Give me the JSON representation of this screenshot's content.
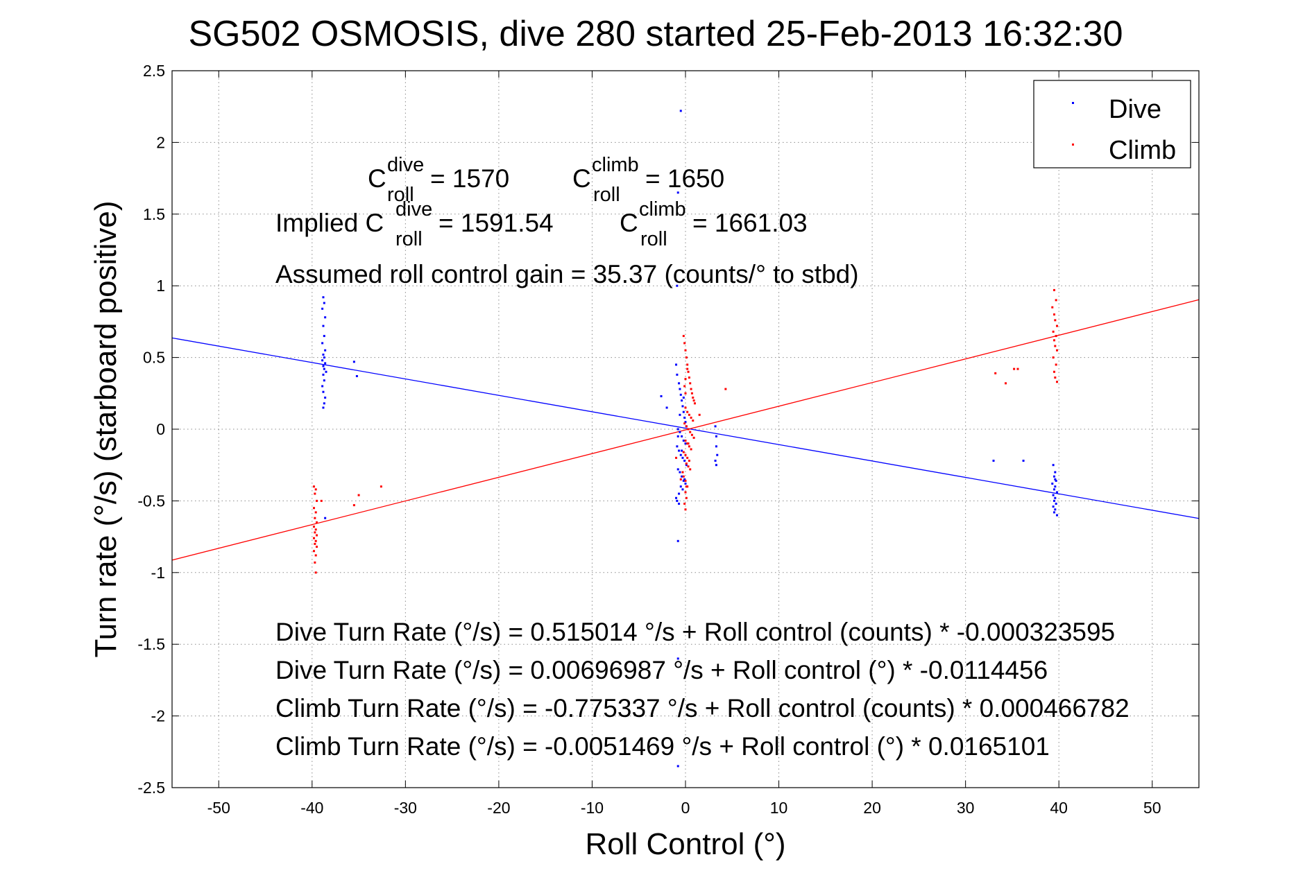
{
  "chart_data": {
    "type": "scatter",
    "title": "SG502 OSMOSIS, dive 280 started 25-Feb-2013 16:32:30",
    "xlabel": "Roll Control (°)",
    "ylabel": "Turn rate (°/s)  (starboard positive)",
    "xlim": [
      -55,
      55
    ],
    "ylim": [
      -2.5,
      2.5
    ],
    "x_ticks": [
      -50,
      -40,
      -30,
      -20,
      -10,
      0,
      10,
      20,
      30,
      40,
      50
    ],
    "x_tick_labels": [
      "-50",
      "-40",
      "-30",
      "-20",
      "-10",
      "0",
      "10",
      "20",
      "30",
      "40",
      "50"
    ],
    "y_ticks": [
      -2.5,
      -2,
      -1.5,
      -1,
      -0.5,
      0,
      0.5,
      1,
      1.5,
      2,
      2.5
    ],
    "y_tick_labels": [
      "-2.5",
      "-2",
      "-1.5",
      "-1",
      "-0.5",
      "0",
      "0.5",
      "1",
      "1.5",
      "2",
      "2.5"
    ],
    "grid": true,
    "legend_position": "top-right",
    "series": [
      {
        "name": "Dive",
        "color": "#0000ff",
        "x": [
          -38.8,
          -38.7,
          -38.9,
          -38.6,
          -38.8,
          -38.7,
          -38.9,
          -38.6,
          -38.8,
          -38.7,
          -38.9,
          -38.6,
          -38.8,
          -38.7,
          -38.5,
          -38.8,
          -38.7,
          -38.9,
          -38.8,
          -38.6,
          -38.7,
          -38.8,
          -35.5,
          -35.2,
          -38.6,
          -1.0,
          -0.9,
          -0.7,
          -0.6,
          -0.5,
          -0.4,
          -0.3,
          -0.2,
          -0.1,
          0.0,
          0.1,
          -0.8,
          -0.6,
          -0.4,
          -0.2,
          0.0,
          -0.9,
          -0.7,
          -0.5,
          -0.3,
          -0.1,
          0.1,
          -0.8,
          -0.6,
          -0.4,
          -0.2,
          0.0,
          -0.5,
          -0.3,
          -0.7,
          -0.1,
          -0.4,
          -0.6,
          -0.2,
          -0.8,
          -0.9,
          -1.0,
          -0.7,
          -0.8,
          -0.5,
          -2.6,
          -2.0,
          -0.8,
          -0.9,
          -0.8,
          -0.8,
          3.2,
          3.3,
          3.3,
          3.4,
          3.2,
          3.3,
          33.0,
          36.2,
          39.4,
          39.6,
          39.5,
          39.7,
          39.3,
          39.6,
          39.5,
          39.8,
          39.4,
          39.6,
          39.5,
          39.7,
          39.4,
          39.6,
          39.5,
          39.8,
          39.6
        ],
        "y": [
          0.92,
          0.88,
          0.84,
          0.78,
          0.72,
          0.65,
          0.6,
          0.55,
          0.52,
          0.5,
          0.48,
          0.46,
          0.44,
          0.42,
          0.4,
          0.38,
          0.34,
          0.3,
          0.26,
          0.22,
          0.18,
          0.15,
          0.47,
          0.37,
          -0.62,
          0.45,
          0.38,
          0.32,
          0.28,
          0.24,
          0.2,
          0.16,
          0.12,
          0.08,
          0.05,
          0.02,
          0.0,
          -0.02,
          -0.05,
          -0.08,
          -0.1,
          -0.12,
          -0.15,
          -0.18,
          -0.2,
          -0.22,
          -0.25,
          -0.28,
          -0.3,
          -0.33,
          -0.36,
          -0.38,
          -0.4,
          -0.42,
          -0.45,
          -0.35,
          -0.15,
          0.1,
          0.22,
          -0.05,
          -0.5,
          -0.48,
          -0.52,
          -0.78,
          2.22,
          0.23,
          0.15,
          1.65,
          1.0,
          -1.6,
          -2.35,
          0.02,
          -0.05,
          -0.12,
          -0.18,
          -0.22,
          -0.25,
          -0.22,
          -0.22,
          -0.25,
          -0.3,
          -0.33,
          -0.36,
          -0.38,
          -0.4,
          -0.42,
          -0.44,
          -0.46,
          -0.48,
          -0.5,
          -0.52,
          -0.54,
          -0.56,
          -0.58,
          -0.6,
          -0.35
        ]
      },
      {
        "name": "Climb",
        "color": "#ff0000",
        "x": [
          -39.8,
          -39.6,
          -39.7,
          -39.5,
          -39.8,
          -39.6,
          -39.7,
          -39.5,
          -39.8,
          -39.6,
          -39.7,
          -39.5,
          -39.8,
          -39.6,
          -39.7,
          -39.5,
          -39.8,
          -39.6,
          -39.7,
          -39.6,
          -35.0,
          -35.5,
          -32.6,
          -39.0,
          -0.2,
          -0.1,
          0.0,
          0.1,
          0.2,
          0.3,
          0.4,
          0.5,
          0.6,
          0.7,
          0.8,
          0.9,
          1.0,
          0.0,
          0.2,
          0.4,
          0.6,
          0.8,
          -0.1,
          0.1,
          0.3,
          0.5,
          0.7,
          0.9,
          0.0,
          0.2,
          0.4,
          0.6,
          -0.2,
          0.0,
          0.2,
          0.4,
          0.1,
          0.3,
          0.5,
          -0.3,
          -0.2,
          0.0,
          0.2,
          0.0,
          0.1,
          -0.1,
          0.0,
          0.1,
          0.2,
          0.0,
          -0.1,
          0.3,
          0.0,
          -0.5,
          -1.0,
          1.5,
          4.3,
          33.2,
          34.3,
          35.2,
          35.6,
          39.3,
          39.5,
          39.6,
          39.8,
          39.4,
          39.7,
          39.5,
          39.6,
          39.8,
          39.4,
          39.7,
          39.5,
          39.6,
          39.8,
          39.5,
          39.7
        ],
        "y": [
          -0.4,
          -0.42,
          -0.45,
          -0.5,
          -0.55,
          -0.58,
          -0.62,
          -0.65,
          -0.68,
          -0.7,
          -0.72,
          -0.74,
          -0.76,
          -0.78,
          -0.8,
          -0.82,
          -0.85,
          -0.88,
          -0.93,
          -1.0,
          -0.46,
          -0.53,
          -0.4,
          -0.5,
          0.65,
          0.6,
          0.55,
          0.5,
          0.45,
          0.4,
          0.36,
          0.32,
          0.28,
          0.25,
          0.22,
          0.2,
          0.18,
          0.15,
          0.12,
          0.1,
          0.08,
          0.06,
          0.04,
          0.02,
          0.0,
          -0.02,
          -0.04,
          -0.06,
          -0.08,
          -0.1,
          -0.12,
          -0.14,
          -0.16,
          -0.18,
          -0.2,
          -0.22,
          -0.24,
          -0.26,
          -0.28,
          -0.3,
          -0.33,
          -0.36,
          -0.4,
          -0.44,
          -0.48,
          -0.52,
          -0.56,
          -0.4,
          0.42,
          0.35,
          0.3,
          -0.1,
          0.25,
          -0.35,
          -0.2,
          0.1,
          0.28,
          0.39,
          0.32,
          0.42,
          0.42,
          0.85,
          0.8,
          0.76,
          0.72,
          0.68,
          0.65,
          0.62,
          0.58,
          0.55,
          0.5,
          0.45,
          0.4,
          0.36,
          0.33,
          0.97,
          0.9
        ]
      }
    ],
    "fit_lines": [
      {
        "series": "Dive",
        "color": "#0000ff",
        "intercept": 0.00696987,
        "slope": -0.0114456
      },
      {
        "series": "Climb",
        "color": "#ff0000",
        "intercept": -0.0051469,
        "slope": 0.0165101
      }
    ],
    "annotations": {
      "c_dive": {
        "base": "C",
        "sup": "dive",
        "sub": "roll",
        "value": " = 1570"
      },
      "c_climb": {
        "base": "C",
        "sup": "climb",
        "sub": "roll",
        "value": " = 1650"
      },
      "implied_prefix": "Implied C",
      "implied_dive": {
        "sup": "dive",
        "sub": "roll",
        "value": " = 1591.54"
      },
      "implied_climb": {
        "base": "C",
        "sup": "climb",
        "sub": "roll",
        "value": " = 1661.03"
      },
      "gain": "Assumed roll control gain = 35.37 (counts/° to stbd)",
      "equations": [
        "Dive Turn Rate (°/s) = 0.515014 °/s + Roll control (counts) * -0.000323595",
        "Dive Turn Rate (°/s) = 0.00696987 °/s + Roll control (°) * -0.0114456",
        "Climb Turn Rate (°/s) = -0.775337 °/s + Roll control (counts) * 0.000466782",
        "Climb Turn Rate (°/s) = -0.0051469 °/s + Roll control (°) * 0.0165101"
      ]
    }
  }
}
